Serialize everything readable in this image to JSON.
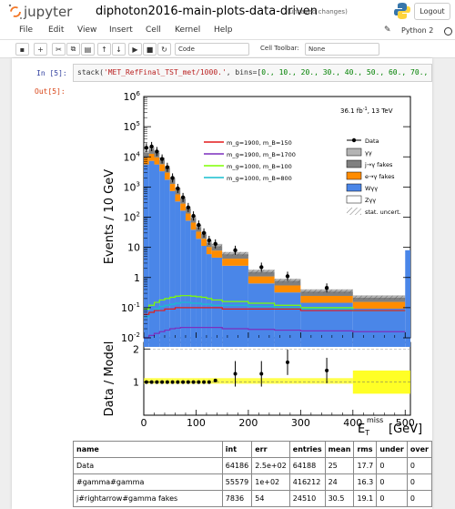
{
  "header": {
    "app_name": "jupyter",
    "notebook_name": "diphoton2016-main-plots-data-driven",
    "save_status": "(unsaved changes)",
    "logout_label": "Logout"
  },
  "menubar": {
    "items": [
      "File",
      "Edit",
      "View",
      "Insert",
      "Cell",
      "Kernel",
      "Help"
    ],
    "kernel_name": "Python 2"
  },
  "toolbar": {
    "cell_type": "Code",
    "cell_toolbar_label": "Cell Toolbar:",
    "cell_toolbar_value": "None"
  },
  "cell": {
    "in_prompt": "In [5]:",
    "out_prompt": "Out[5]:",
    "code_fn": "stack(",
    "code_str": "'MET_RefFinal_TST_met/1000.'",
    "code_mid": ", bins=[",
    "code_nums": "0., 10., 20., 30., 40., 50., 60., 70.,"
  },
  "plot": {
    "annotation_lumi": "36.1 fb",
    "annotation_lumi_sup": "-1",
    "annotation_energy": ", 13 TeV",
    "y_label_top": "Events / 10 GeV",
    "y_label_bottom": "Data / Model",
    "x_label": "E",
    "x_label_sub": "T",
    "x_label_sup": "miss",
    "x_unit": "[GeV]",
    "x_ticks": [
      "0",
      "100",
      "200",
      "300",
      "400",
      "500"
    ],
    "ratio_ticks": [
      "1",
      "2"
    ],
    "legend_signal": [
      {
        "label": "m_g=1900, m_B=150",
        "color": "#e41a1c"
      },
      {
        "label": "m_g=1900, m_B=1700",
        "color": "#7b2fbe"
      },
      {
        "label": "m_g=1000, m_B=100",
        "color": "#7fff00"
      },
      {
        "label": "m_g=1000, m_B=800",
        "color": "#17becf"
      }
    ],
    "legend_bg": [
      {
        "label": "Data",
        "type": "data"
      },
      {
        "label": "γγ",
        "color": "#b3b3b3"
      },
      {
        "label": "j→γ fakes",
        "color": "#808080"
      },
      {
        "label": "e→γ fakes",
        "color": "#ff8c00"
      },
      {
        "label": "Wγγ",
        "color": "#4a86e8"
      },
      {
        "label": "Zγγ",
        "color": "#ffffff"
      },
      {
        "label": "stat. uncert.",
        "type": "hatch"
      }
    ]
  },
  "chart_data": {
    "type": "bar",
    "title": "",
    "xlabel": "E_T^miss [GeV]",
    "ylabel": "Events / 10 GeV",
    "log_y": true,
    "ylim": [
      0.01,
      1000000
    ],
    "xlim": [
      0,
      510
    ],
    "data_points": [
      {
        "x": 5,
        "y": 20000
      },
      {
        "x": 15,
        "y": 22000
      },
      {
        "x": 25,
        "y": 15000
      },
      {
        "x": 35,
        "y": 8500
      },
      {
        "x": 45,
        "y": 4500
      },
      {
        "x": 55,
        "y": 2000
      },
      {
        "x": 65,
        "y": 900
      },
      {
        "x": 75,
        "y": 450
      },
      {
        "x": 85,
        "y": 210
      },
      {
        "x": 95,
        "y": 110
      },
      {
        "x": 105,
        "y": 55
      },
      {
        "x": 115,
        "y": 30
      },
      {
        "x": 125,
        "y": 17
      },
      {
        "x": 137,
        "y": 13
      },
      {
        "x": 175,
        "y": 8
      },
      {
        "x": 225,
        "y": 2.2
      },
      {
        "x": 275,
        "y": 1.1
      },
      {
        "x": 350,
        "y": 0.45
      }
    ],
    "stack_edges": [
      0,
      10,
      20,
      30,
      40,
      50,
      60,
      70,
      80,
      90,
      100,
      110,
      120,
      130,
      150,
      200,
      250,
      300,
      400,
      500
    ],
    "stack_totals": [
      16000,
      21000,
      16000,
      9500,
      5000,
      2100,
      950,
      470,
      220,
      110,
      55,
      32,
      17,
      13,
      7,
      1.8,
      0.9,
      0.4,
      0.25
    ],
    "ratio": {
      "ylabel": "Data / Model",
      "ylim": [
        0,
        2.2
      ],
      "points": [
        {
          "x": 5,
          "y": 1.0
        },
        {
          "x": 15,
          "y": 1.0
        },
        {
          "x": 25,
          "y": 1.0
        },
        {
          "x": 35,
          "y": 1.0
        },
        {
          "x": 45,
          "y": 1.0
        },
        {
          "x": 55,
          "y": 1.0
        },
        {
          "x": 65,
          "y": 1.0
        },
        {
          "x": 75,
          "y": 1.0
        },
        {
          "x": 85,
          "y": 1.0
        },
        {
          "x": 95,
          "y": 1.0
        },
        {
          "x": 105,
          "y": 1.0
        },
        {
          "x": 115,
          "y": 1.0
        },
        {
          "x": 125,
          "y": 1.0
        },
        {
          "x": 137,
          "y": 1.05
        },
        {
          "x": 175,
          "y": 1.25
        },
        {
          "x": 225,
          "y": 1.25
        },
        {
          "x": 275,
          "y": 1.6
        },
        {
          "x": 350,
          "y": 1.35
        }
      ]
    }
  },
  "table": {
    "headers": [
      "name",
      "int",
      "err",
      "entries",
      "mean",
      "rms",
      "under",
      "over"
    ],
    "rows": [
      [
        "Data",
        "64186",
        "2.5e+02",
        "64188",
        "25",
        "17.7",
        "0",
        "0"
      ],
      [
        "#gamma#gamma",
        "55579",
        "1e+02",
        "416212",
        "24",
        "16.3",
        "0",
        "0"
      ],
      [
        "j#rightarrow#gamma fakes",
        "7836",
        "54",
        "24510",
        "30.5",
        "19.1",
        "0",
        "0"
      ]
    ]
  }
}
